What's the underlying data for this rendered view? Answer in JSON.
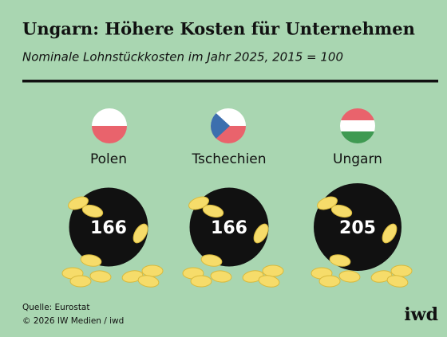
{
  "chart_data": {
    "type": "bubble",
    "title": "Ungarn: Höhere Kosten für Unternehmen",
    "subtitle": "Nominale Lohnstückkosten im Jahr 2025, 2015 = 100",
    "categories": [
      "Polen",
      "Tschechien",
      "Ungarn"
    ],
    "values": [
      166,
      166,
      205
    ],
    "color": "#111111",
    "source": "Quelle: Eurostat",
    "copyright": "© 2026 IW Medien / iwd",
    "brand": "iwd"
  }
}
